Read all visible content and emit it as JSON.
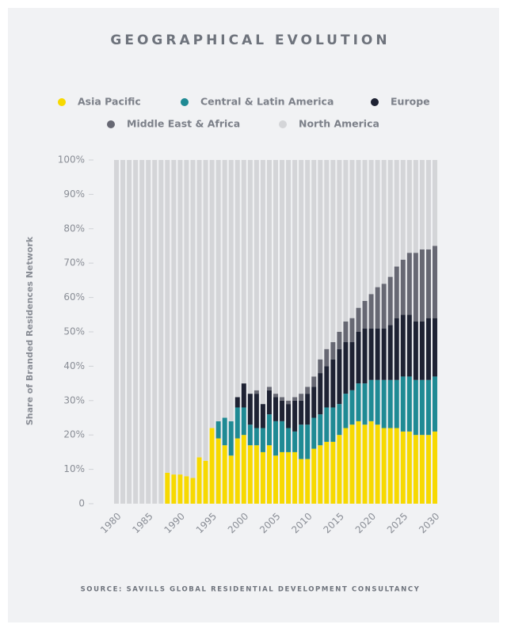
{
  "chart_data": {
    "type": "stacked_bar",
    "title": "GEOGRAPHICAL EVOLUTION",
    "y_label": "Share of Branded Residences Network",
    "source": "SOURCE: SAVILLS GLOBAL RESIDENTIAL DEVELOPMENT CONSULTANCY",
    "categories": [
      "1980",
      null,
      null,
      null,
      null,
      "1985",
      null,
      null,
      null,
      null,
      "1990",
      null,
      null,
      null,
      null,
      "1995",
      null,
      null,
      null,
      null,
      "2000",
      null,
      null,
      null,
      null,
      "2005",
      null,
      null,
      null,
      null,
      "2010",
      null,
      null,
      null,
      null,
      "2015",
      null,
      null,
      null,
      null,
      "2020",
      null,
      null,
      null,
      null,
      "2025",
      null,
      null,
      null,
      null,
      "2030"
    ],
    "series": [
      {
        "name": "Asia Pacific",
        "color": "#f7d900",
        "values": [
          0,
          0,
          0,
          0,
          0,
          0,
          0,
          0,
          9,
          8.5,
          8.5,
          8,
          7.5,
          13.5,
          12.5,
          22,
          19,
          17,
          14,
          19,
          20,
          17,
          17,
          15,
          17,
          14,
          15,
          15,
          15,
          13,
          13,
          16,
          17,
          18,
          18,
          20,
          22,
          23,
          24,
          23,
          24,
          23,
          22,
          22,
          22,
          21,
          21,
          20,
          20,
          20,
          21
        ]
      },
      {
        "name": "Central & Latin America",
        "color": "#1f8a94",
        "values": [
          0,
          0,
          0,
          0,
          0,
          0,
          0,
          0,
          0,
          0,
          0,
          0,
          0,
          0,
          0,
          0,
          5,
          8,
          10,
          9,
          8,
          6,
          5,
          7,
          9,
          10,
          9,
          7,
          6,
          10,
          10,
          9,
          9,
          10,
          10,
          9,
          10,
          10,
          11,
          12,
          12,
          13,
          14,
          14,
          14,
          16,
          16,
          16,
          16,
          16,
          16
        ]
      },
      {
        "name": "Europe",
        "color": "#1e2233",
        "values": [
          0,
          0,
          0,
          0,
          0,
          0,
          0,
          0,
          0,
          0,
          0,
          0,
          0,
          0,
          0,
          0,
          0,
          0,
          0,
          3,
          7,
          9,
          10,
          7,
          7,
          7,
          6,
          7,
          9,
          7,
          9,
          9,
          12,
          12,
          14,
          16,
          15,
          14,
          15,
          16,
          15,
          15,
          15,
          16,
          18,
          18,
          18,
          17,
          17,
          18,
          17
        ]
      },
      {
        "name": "Middle East & Africa",
        "color": "#676873",
        "values": [
          0,
          0,
          0,
          0,
          0,
          0,
          0,
          0,
          0,
          0,
          0,
          0,
          0,
          0,
          0,
          0,
          0,
          0,
          0,
          0,
          0,
          0,
          1,
          0,
          1,
          1,
          1,
          1,
          1,
          2,
          2,
          3,
          4,
          5,
          5,
          5,
          6,
          7,
          7,
          8,
          10,
          12,
          13,
          14,
          15,
          16,
          18,
          20,
          21,
          20,
          21
        ]
      },
      {
        "name": "North America",
        "color": "#d4d5d8",
        "values": [
          100,
          100,
          100,
          100,
          100,
          100,
          100,
          100,
          91,
          91.5,
          91.5,
          92,
          92.5,
          86.5,
          87.5,
          78,
          76,
          75,
          76,
          69,
          65,
          68,
          67,
          71,
          66,
          68,
          69,
          70,
          69,
          68,
          66,
          63,
          58,
          55,
          53,
          50,
          47,
          46,
          43,
          41,
          39,
          37,
          36,
          34,
          31,
          29,
          27,
          27,
          26,
          26,
          25
        ]
      }
    ],
    "ylim": [
      0,
      100
    ],
    "yticks": [
      0,
      {
        "value": 10,
        "label": "10%"
      },
      {
        "value": 20,
        "label": "20%"
      },
      {
        "value": 30,
        "label": "30%"
      },
      {
        "value": 40,
        "label": "40%"
      },
      {
        "value": 50,
        "label": "50%"
      },
      {
        "value": 60,
        "label": "60%"
      },
      {
        "value": 70,
        "label": "70%"
      },
      {
        "value": 80,
        "label": "80%"
      },
      {
        "value": 90,
        "label": "90%"
      },
      {
        "value": 100,
        "label": "100%"
      }
    ]
  }
}
